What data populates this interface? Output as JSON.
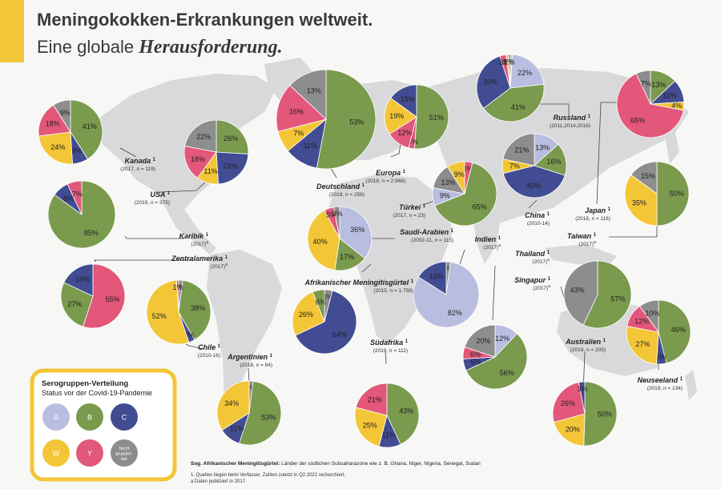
{
  "header": {
    "title": "Meningokokken-Erkrankungen weltweit.",
    "subtitle_plain": "Eine globale ",
    "subtitle_italic": "Herausforderung."
  },
  "colors": {
    "A": "#b9bde0",
    "B": "#7a9a4e",
    "C": "#424c92",
    "W": "#f3c637",
    "Y": "#e2577a",
    "X": "#8d8d8d",
    "accent": "#f3c637",
    "map": "#d9d9db"
  },
  "legend": {
    "title": "Serogruppen-Verteilung",
    "subtitle": "Status vor der Covid-19-Pandemie",
    "items": [
      {
        "key": "A",
        "label": "A"
      },
      {
        "key": "B",
        "label": "B"
      },
      {
        "key": "C",
        "label": "C"
      },
      {
        "key": "W",
        "label": "W"
      },
      {
        "key": "Y",
        "label": "Y"
      },
      {
        "key": "X",
        "label": "Nicht gruppier-bar"
      }
    ]
  },
  "footer": {
    "note_bold": "Sog. Afrikanischer Meningitisgürtel:",
    "note_rest": " Länder der südlichen Subsaharazone wie z. B. Ghana, Niger, Nigeria, Senegal, Sudan",
    "fn1": "1. Quellen liegen beim Verfasser. Zahlen zuletzt in Q2 2022 recherchiert.",
    "fn2": "a Daten publiziert in 2017."
  },
  "chart_data": {
    "type": "pie",
    "title": "Meningokokken-Erkrankungen weltweit.",
    "series_names": {
      "A": "A",
      "B": "B",
      "C": "C",
      "W": "W",
      "Y": "Y",
      "X": "Nicht gruppierbar"
    },
    "pies": [
      {
        "id": "kanada",
        "name": "Kanada",
        "info": "(2017, n = 119)",
        "slices": [
          {
            "g": "B",
            "v": 41
          },
          {
            "g": "C",
            "v": 8
          },
          {
            "g": "W",
            "v": 24
          },
          {
            "g": "Y",
            "v": 18
          },
          {
            "g": "X",
            "v": 9
          }
        ]
      },
      {
        "id": "usa",
        "name": "USA",
        "info": "(2019, n = 375)",
        "slices": [
          {
            "g": "B",
            "v": 26
          },
          {
            "g": "C",
            "v": 23
          },
          {
            "g": "W",
            "v": 11
          },
          {
            "g": "Y",
            "v": 18
          },
          {
            "g": "X",
            "v": 22
          }
        ]
      },
      {
        "id": "karibik",
        "name": "Karibik",
        "info": "(2017)",
        "sup": "a",
        "slices": [
          {
            "g": "B",
            "v": 85
          },
          {
            "g": "C",
            "v": 8
          },
          {
            "g": "Y",
            "v": 7
          }
        ]
      },
      {
        "id": "zentralamerika",
        "name": "Zentralamerika",
        "info": "(2017)",
        "sup": "a",
        "slices": [
          {
            "g": "Y",
            "v": 55
          },
          {
            "g": "B",
            "v": 27
          },
          {
            "g": "C",
            "v": 18
          }
        ]
      },
      {
        "id": "chile",
        "name": "Chile",
        "info": "(2010-16)",
        "slices": [
          {
            "g": "X",
            "v": 2
          },
          {
            "g": "B",
            "v": 38
          },
          {
            "g": "C",
            "v": 3
          },
          {
            "g": "W",
            "v": 52
          },
          {
            "g": "Y",
            "v": 1
          }
        ]
      },
      {
        "id": "argentinien",
        "name": "Argentinien",
        "info": "(2018, n = 64)",
        "slices": [
          {
            "g": "X",
            "v": 2
          },
          {
            "g": "B",
            "v": 53
          },
          {
            "g": "C",
            "v": 11
          },
          {
            "g": "W",
            "v": 34
          }
        ]
      },
      {
        "id": "deutschland",
        "name": "Deutschland",
        "info": "(2019, n = 256)",
        "slices": [
          {
            "g": "B",
            "v": 53
          },
          {
            "g": "C",
            "v": 11
          },
          {
            "g": "W",
            "v": 7
          },
          {
            "g": "Y",
            "v": 16
          },
          {
            "g": "X",
            "v": 13
          }
        ]
      },
      {
        "id": "europa",
        "name": "Europa",
        "info": "(2019, n = 2.968)",
        "slices": [
          {
            "g": "B",
            "v": 51
          },
          {
            "g": "Y",
            "v": 3
          },
          {
            "g": "Y",
            "v": 12
          },
          {
            "g": "W",
            "v": 19
          },
          {
            "g": "C",
            "v": 15
          }
        ]
      },
      {
        "id": "tuerkei",
        "name": "Türkei",
        "info": "(2017, n = 23)",
        "slices": [
          {
            "g": "Y",
            "v": 4
          },
          {
            "g": "B",
            "v": 65
          },
          {
            "g": "A",
            "v": 9
          },
          {
            "g": "X",
            "v": 13
          },
          {
            "g": "W",
            "v": 9
          }
        ]
      },
      {
        "id": "saudiarabien",
        "name": "Saudi-Arabien",
        "info": "(2002-11, n = 115)",
        "slices": [
          {
            "g": "A",
            "v": 36
          },
          {
            "g": "B",
            "v": 17
          },
          {
            "g": "W",
            "v": 40
          },
          {
            "g": "Y",
            "v": 5
          },
          {
            "g": "X",
            "v": 3
          }
        ]
      },
      {
        "id": "meningitis",
        "name": "Afrikanischer Meningitisgürtel",
        "info": "(2015, n = 1.758)",
        "slices": [
          {
            "g": "X",
            "v": 4
          },
          {
            "g": "C",
            "v": 64
          },
          {
            "g": "W",
            "v": 26
          },
          {
            "g": "B",
            "v": 6
          }
        ]
      },
      {
        "id": "suedafrika",
        "name": "Südafrika",
        "info": "(2019, n = 111)",
        "slices": [
          {
            "g": "B",
            "v": 43
          },
          {
            "g": "C",
            "v": 11
          },
          {
            "g": "W",
            "v": 25
          },
          {
            "g": "Y",
            "v": 21
          }
        ]
      },
      {
        "id": "russland",
        "name": "Russland",
        "info": "(2011,2014,2016)",
        "slices": [
          {
            "g": "A",
            "v": 1
          },
          {
            "g": "A",
            "v": 22
          },
          {
            "g": "B",
            "v": 41
          },
          {
            "g": "C",
            "v": 30
          },
          {
            "g": "Y",
            "v": 3
          },
          {
            "g": "W",
            "v": 1
          },
          {
            "g": "X",
            "v": 1
          }
        ]
      },
      {
        "id": "china",
        "name": "China",
        "info": "(2010-14)",
        "slices": [
          {
            "g": "A",
            "v": 13
          },
          {
            "g": "B",
            "v": 16
          },
          {
            "g": "C",
            "v": 40
          },
          {
            "g": "W",
            "v": 7
          },
          {
            "g": "X",
            "v": 21
          }
        ]
      },
      {
        "id": "indien",
        "name": "Indien",
        "info": "(2017)",
        "sup": "a",
        "slices": [
          {
            "g": "X",
            "v": 2
          },
          {
            "g": "A",
            "v": 82
          },
          {
            "g": "C",
            "v": 16
          }
        ]
      },
      {
        "id": "thailand",
        "name": "Thailand",
        "info": "(2017)",
        "sup": "a",
        "slices": [
          {
            "g": "A",
            "v": 12
          },
          {
            "g": "B",
            "v": 56
          },
          {
            "g": "C",
            "v": 6
          },
          {
            "g": "Y",
            "v": 6
          },
          {
            "g": "X",
            "v": 20
          }
        ]
      },
      {
        "id": "singapur",
        "name": "Singapur",
        "info": "(2017)",
        "sup": "a",
        "slices": [
          {
            "g": "B",
            "v": 57
          },
          {
            "g": "X",
            "v": 43
          }
        ]
      },
      {
        "id": "japan",
        "name": "Japan",
        "info": "(2018, n = 116)",
        "slices": [
          {
            "g": "B",
            "v": 13
          },
          {
            "g": "C",
            "v": 11
          },
          {
            "g": "W",
            "v": 4
          },
          {
            "g": "Y",
            "v": 65
          },
          {
            "g": "X",
            "v": 7
          }
        ]
      },
      {
        "id": "taiwan",
        "name": "Taiwan",
        "info": "(2017)",
        "sup": "a",
        "slices": [
          {
            "g": "B",
            "v": 50
          },
          {
            "g": "W",
            "v": 35
          },
          {
            "g": "X",
            "v": 15
          }
        ]
      },
      {
        "id": "australien",
        "name": "Australien",
        "info": "(2019, n = 205)",
        "slices": [
          {
            "g": "B",
            "v": 50
          },
          {
            "g": "W",
            "v": 20
          },
          {
            "g": "Y",
            "v": 26
          },
          {
            "g": "C",
            "v": 3
          }
        ]
      },
      {
        "id": "neuseeland",
        "name": "Neuseeland",
        "info": "(2019, n = 134)",
        "slices": [
          {
            "g": "B",
            "v": 46
          },
          {
            "g": "C",
            "v": 5
          },
          {
            "g": "W",
            "v": 27
          },
          {
            "g": "Y",
            "v": 12
          },
          {
            "g": "X",
            "v": 10
          }
        ]
      }
    ]
  }
}
